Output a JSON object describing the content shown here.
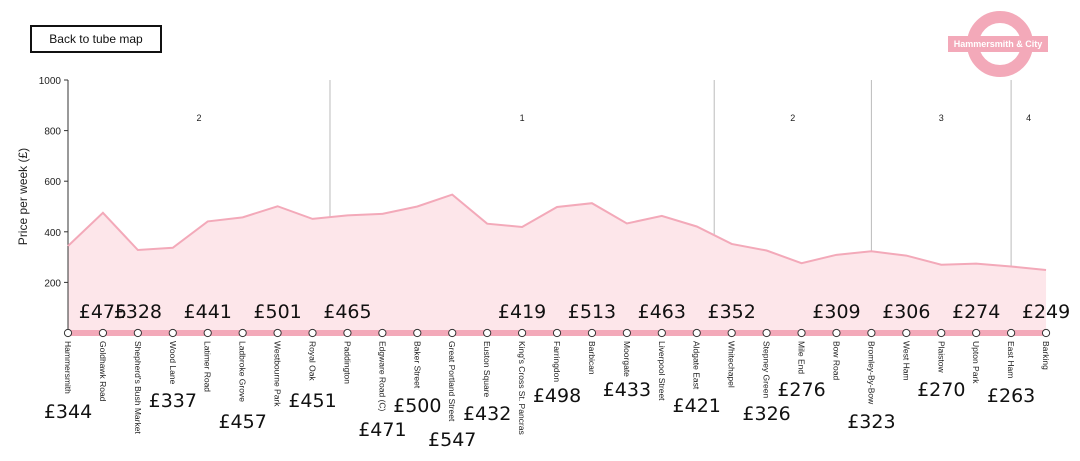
{
  "controls": {
    "back_label": "Back to tube map"
  },
  "logo": {
    "text": "Hammersmith & City",
    "color": "#f3a9b9"
  },
  "colors": {
    "line": "#f3a9b9",
    "area": "#fde6ea",
    "zone_divider": "#bbbbbb"
  },
  "chart_data": {
    "type": "area",
    "title": "",
    "ylabel": "Price per week (£)",
    "xlabel": "",
    "ylim": [
      0,
      1000
    ],
    "yticks": [
      200,
      400,
      600,
      800,
      1000
    ],
    "categories": [
      "Hammersmith",
      "Goldhawk Road",
      "Shepherd's Bush Market",
      "Wood Lane",
      "Latimer Road",
      "Ladbroke Grove",
      "Westbourne Park",
      "Royal Oak",
      "Paddington",
      "Edgware Road (C)",
      "Baker Street",
      "Great Portland Street",
      "Euston Square",
      "King's Cross St. Pancras",
      "Farringdon",
      "Barbican",
      "Moorgate",
      "Liverpool Street",
      "Aldgate East",
      "Whitechapel",
      "Stepney Green",
      "Mile End",
      "Bow Road",
      "Bromley-By-Bow",
      "West Ham",
      "Plaistow",
      "Upton Park",
      "East Ham",
      "Barking"
    ],
    "values": [
      344,
      475,
      328,
      337,
      441,
      457,
      501,
      451,
      465,
      471,
      500,
      547,
      432,
      419,
      498,
      513,
      433,
      463,
      421,
      352,
      326,
      276,
      309,
      323,
      306,
      270,
      274,
      263,
      249
    ],
    "price_labels": [
      "£344",
      "£475",
      "£328",
      "£337",
      "£441",
      "£457",
      "£501",
      "£451",
      "£465",
      "£471",
      "£500",
      "£547",
      "£432",
      "£419",
      "£498",
      "£513",
      "£433",
      "£463",
      "£421",
      "£352",
      "£326",
      "£276",
      "£309",
      "£323",
      "£306",
      "£270",
      "£274",
      "£263",
      "£249"
    ],
    "zones": [
      {
        "label": "2",
        "start": 0,
        "end": 7.5
      },
      {
        "label": "1",
        "start": 7.5,
        "end": 18.5
      },
      {
        "label": "2",
        "start": 18.5,
        "end": 23
      },
      {
        "label": "3",
        "start": 23,
        "end": 27
      },
      {
        "label": "4",
        "start": 27,
        "end": 28
      }
    ],
    "grid": false,
    "legend": "none"
  }
}
